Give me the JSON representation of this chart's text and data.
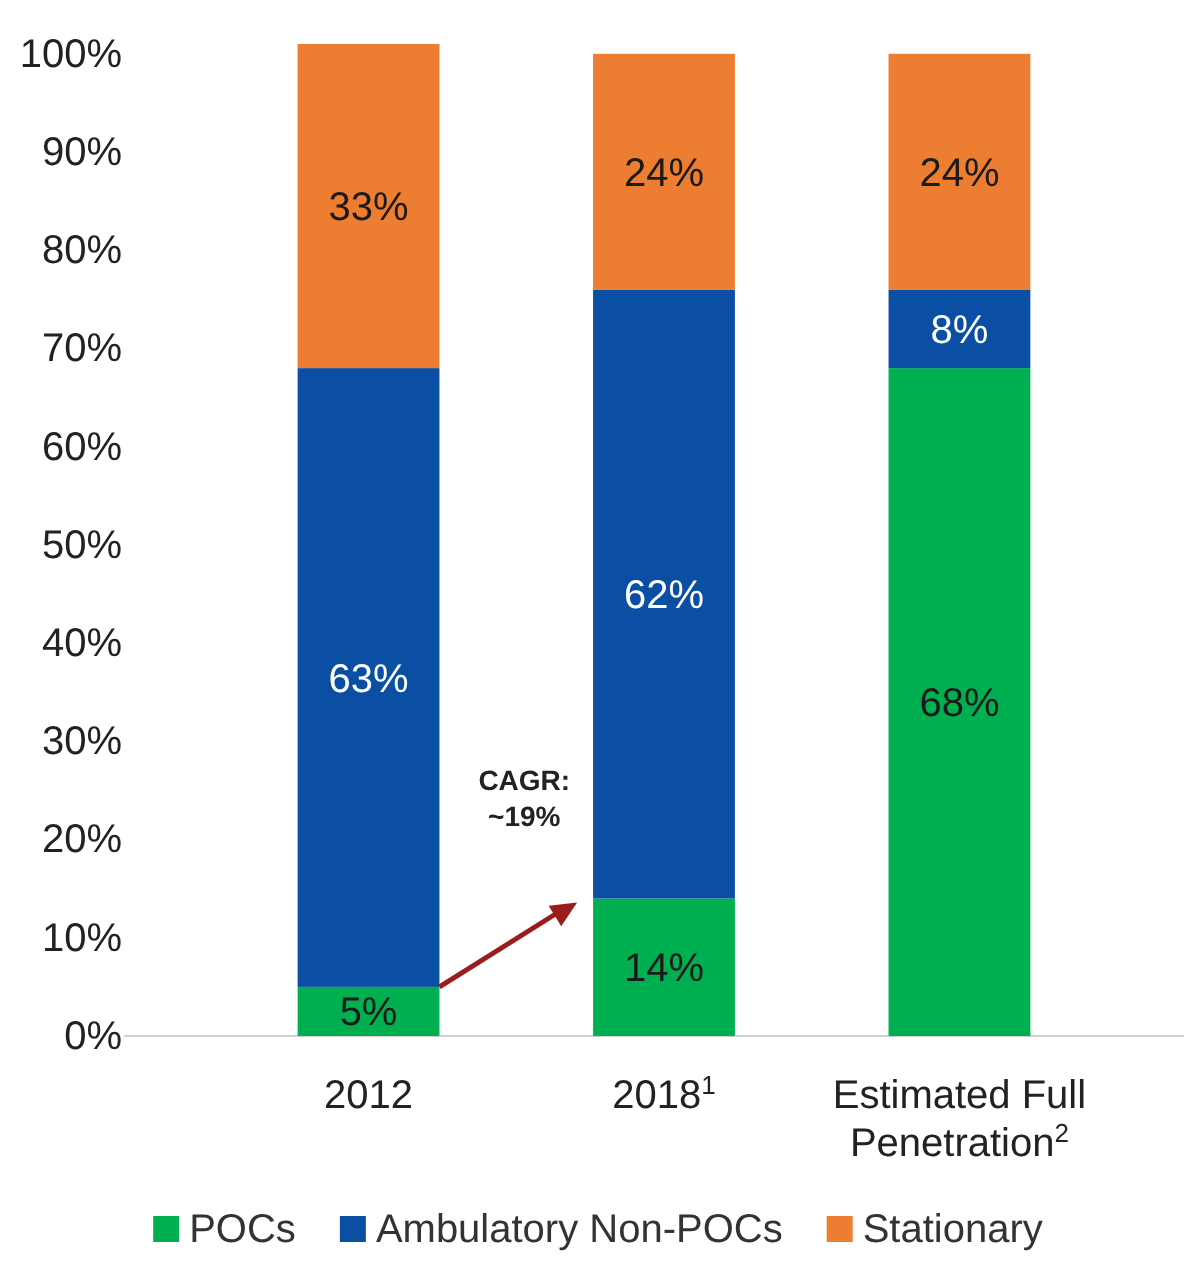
{
  "chart_data": {
    "type": "bar",
    "stacked": true,
    "categories": [
      "2012",
      "2018$^{1}$",
      "Estimated Full Penetration$^{2}$"
    ],
    "series": [
      {
        "name": "POCs",
        "color": "#00b050",
        "values": [
          5,
          14,
          68
        ],
        "value_labels": [
          "5%",
          "14%",
          "68%"
        ]
      },
      {
        "name": "Ambulatory Non-POCs",
        "color": "#0a4fa3",
        "values": [
          63,
          62,
          8
        ],
        "value_labels": [
          "63%",
          "62%",
          "8%"
        ]
      },
      {
        "name": "Stationary",
        "color": "#ed7d31",
        "values": [
          33,
          24,
          24
        ],
        "value_labels": [
          "33%",
          "24%",
          "24%"
        ]
      }
    ],
    "ylim": [
      0,
      101
    ],
    "yticks": [
      {
        "value": 0,
        "label": "0%"
      },
      {
        "value": 10,
        "label": "10%"
      },
      {
        "value": 20,
        "label": "20%"
      },
      {
        "value": 30,
        "label": "30%"
      },
      {
        "value": 40,
        "label": "40%"
      },
      {
        "value": 50,
        "label": "50%"
      },
      {
        "value": 60,
        "label": "60%"
      },
      {
        "value": 70,
        "label": "70%"
      },
      {
        "value": 80,
        "label": "80%"
      },
      {
        "value": 90,
        "label": "90%"
      },
      {
        "value": 100,
        "label": "100%"
      }
    ],
    "grid": false,
    "legend": "bottom",
    "annotations": [
      "CAGR: ~19%"
    ]
  }
}
